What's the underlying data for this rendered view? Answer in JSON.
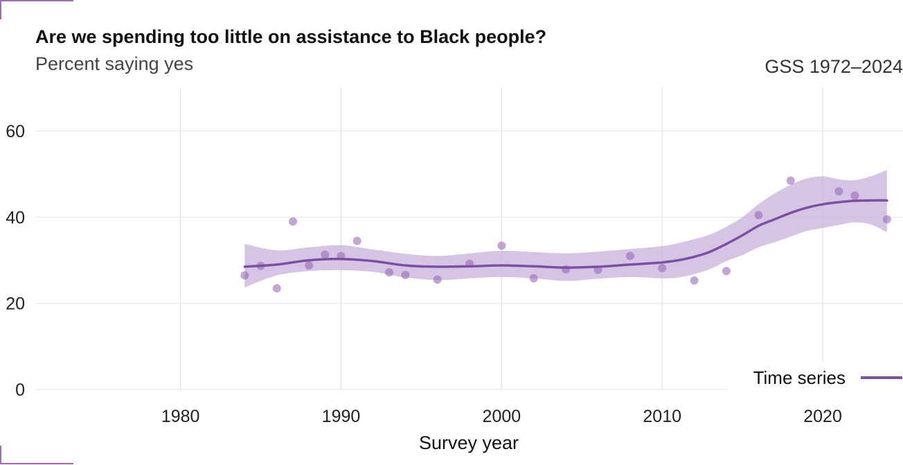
{
  "chart_data": {
    "type": "scatter",
    "title": "Are we spending too little on assistance to Black people?",
    "subtitle": "Percent saying yes",
    "caption": "GSS 1972–2024",
    "xlabel": "Survey year",
    "ylabel": "",
    "xlim": [
      1971,
      2025
    ],
    "ylim": [
      0,
      70
    ],
    "x_ticks": [
      1980,
      1990,
      2000,
      2010,
      2020
    ],
    "y_ticks": [
      0,
      20,
      40,
      60
    ],
    "x_tick_labels": [
      "1980",
      "1990",
      "2000",
      "2010",
      "2020"
    ],
    "y_tick_labels": [
      "0",
      "20",
      "40",
      "60"
    ],
    "grid": true,
    "legend_position": "bottom-right",
    "colors": {
      "points": "#9b6bb5",
      "line": "#7b4fa3",
      "band": "#c9b3dc"
    },
    "points": [
      {
        "x": 1984,
        "y": 26.5
      },
      {
        "x": 1985,
        "y": 28.7
      },
      {
        "x": 1986,
        "y": 23.5
      },
      {
        "x": 1987,
        "y": 39.0
      },
      {
        "x": 1988,
        "y": 28.8
      },
      {
        "x": 1989,
        "y": 31.3
      },
      {
        "x": 1990,
        "y": 31.0
      },
      {
        "x": 1991,
        "y": 34.5
      },
      {
        "x": 1993,
        "y": 27.2
      },
      {
        "x": 1994,
        "y": 26.6
      },
      {
        "x": 1996,
        "y": 25.5
      },
      {
        "x": 1998,
        "y": 29.2
      },
      {
        "x": 2000,
        "y": 33.4
      },
      {
        "x": 2002,
        "y": 25.8
      },
      {
        "x": 2004,
        "y": 27.9
      },
      {
        "x": 2006,
        "y": 27.8
      },
      {
        "x": 2008,
        "y": 31.0
      },
      {
        "x": 2010,
        "y": 28.2
      },
      {
        "x": 2012,
        "y": 25.3
      },
      {
        "x": 2014,
        "y": 27.5
      },
      {
        "x": 2016,
        "y": 40.5
      },
      {
        "x": 2018,
        "y": 48.5
      },
      {
        "x": 2021,
        "y": 46.0
      },
      {
        "x": 2022,
        "y": 45.0
      },
      {
        "x": 2024,
        "y": 39.5
      }
    ],
    "series": [
      {
        "name": "Time series",
        "x": [
          1984,
          1986,
          1988,
          1990,
          1992,
          1994,
          1996,
          1998,
          2000,
          2002,
          2004,
          2006,
          2008,
          2010,
          2011,
          2012,
          2013,
          2014,
          2015,
          2016,
          2017,
          2018,
          2019,
          2020,
          2021,
          2022,
          2023,
          2024
        ],
        "values": [
          28.5,
          29.0,
          30.0,
          30.3,
          29.8,
          28.8,
          28.5,
          28.6,
          28.8,
          28.6,
          28.3,
          28.5,
          29.0,
          29.5,
          30.0,
          30.8,
          32.0,
          33.8,
          35.8,
          38.0,
          39.5,
          41.0,
          42.2,
          43.0,
          43.5,
          43.8,
          43.9,
          43.9
        ],
        "lower": [
          23.7,
          26.5,
          27.5,
          27.7,
          27.3,
          26.0,
          25.4,
          25.8,
          26.1,
          25.8,
          25.2,
          25.7,
          26.1,
          25.8,
          26.0,
          26.8,
          28.0,
          29.8,
          31.2,
          33.0,
          34.2,
          35.5,
          36.8,
          37.5,
          38.2,
          38.8,
          38.3,
          36.5
        ],
        "upper": [
          33.8,
          32.3,
          33.0,
          33.5,
          32.5,
          31.5,
          31.0,
          31.6,
          32.2,
          31.9,
          31.6,
          32.0,
          32.6,
          33.3,
          34.0,
          34.9,
          36.0,
          37.8,
          40.0,
          43.0,
          45.5,
          47.5,
          49.0,
          49.5,
          48.8,
          48.6,
          49.5,
          51.0
        ]
      }
    ]
  }
}
